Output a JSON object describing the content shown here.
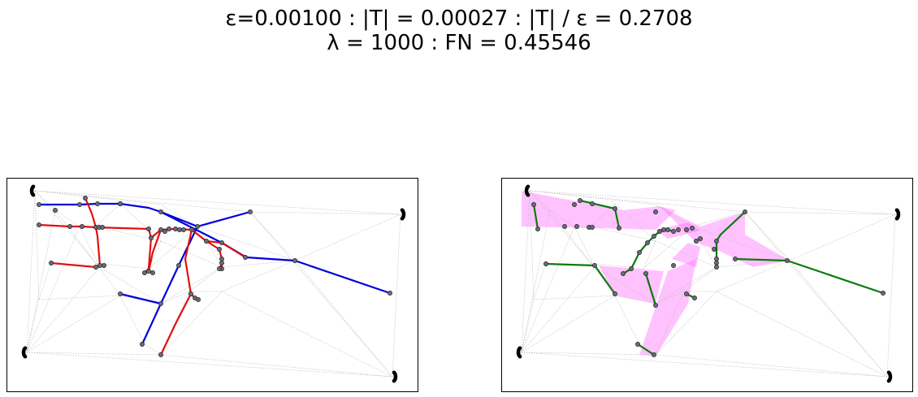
{
  "title": {
    "line1": "ε=0.00100 : |T| = 0.00027 : |T| / ε = 0.2708",
    "line2": "λ = 1000 : FN = 0.45546"
  },
  "colors": {
    "blue_path": "#0000dd",
    "red_path": "#e01010",
    "green_path": "#0a7a0a",
    "pink_fill": "#ff66ff",
    "node_fill": "#6a6a7a",
    "mesh_line": "#b8b8b8",
    "background": "#ffffff"
  }
}
